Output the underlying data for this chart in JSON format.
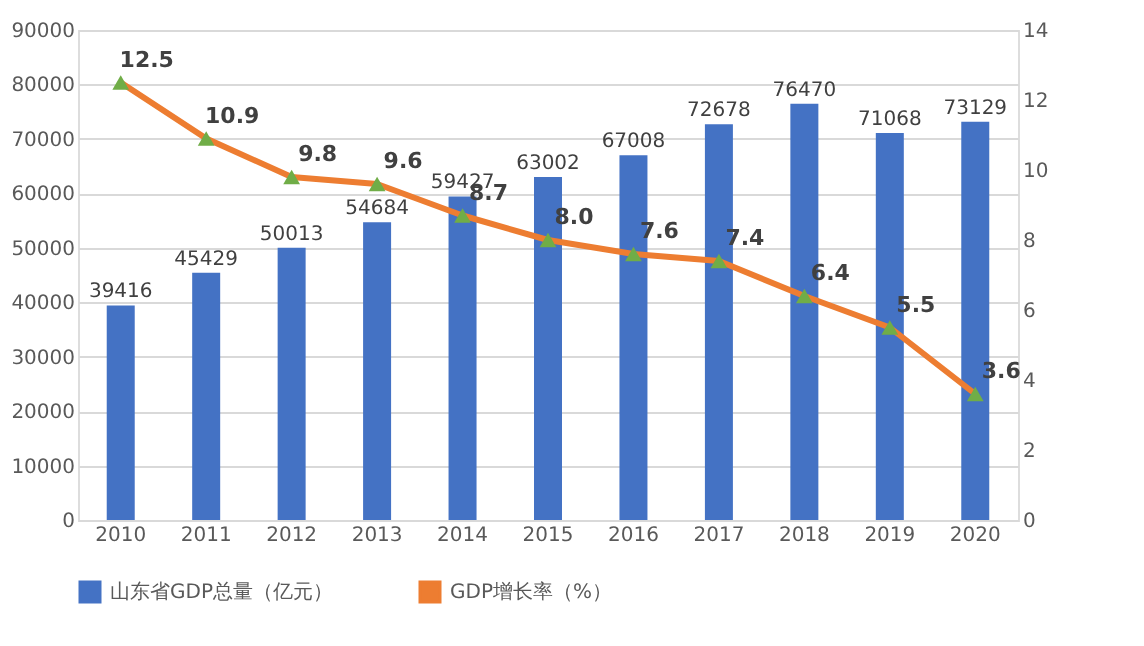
{
  "chart_data": {
    "type": "bar",
    "categories": [
      "2010",
      "2011",
      "2012",
      "2013",
      "2014",
      "2015",
      "2016",
      "2017",
      "2018",
      "2019",
      "2020"
    ],
    "series": [
      {
        "name": "山东省GDP总量（亿元）",
        "color": "#4472c4",
        "values": [
          39416,
          45429,
          50013,
          54684,
          59427,
          63002,
          67008,
          72678,
          76470,
          71068,
          73129
        ],
        "data_labels": true
      },
      {
        "name": "GDP增长率（%）",
        "type": "line",
        "axis": "y2",
        "color": "#ed7d31",
        "marker": "triangle",
        "values": [
          12.5,
          10.9,
          9.8,
          9.6,
          8.7,
          8.0,
          7.6,
          7.4,
          6.4,
          5.5,
          3.6
        ],
        "value_labels": [
          "12.5",
          "10.9",
          "9.8",
          "9.6",
          "8.7",
          "8.0",
          "7.6",
          "7.4",
          "6.4",
          "5.5",
          "3.6"
        ]
      }
    ],
    "ylim": [
      0,
      90000
    ],
    "yticks": [
      0,
      10000,
      20000,
      30000,
      40000,
      50000,
      60000,
      70000,
      80000,
      90000
    ],
    "y2lim": [
      0,
      14
    ],
    "y2ticks": [
      0,
      2,
      4,
      6,
      8,
      10,
      12,
      14
    ],
    "grid": "y",
    "legend": "bottom"
  }
}
